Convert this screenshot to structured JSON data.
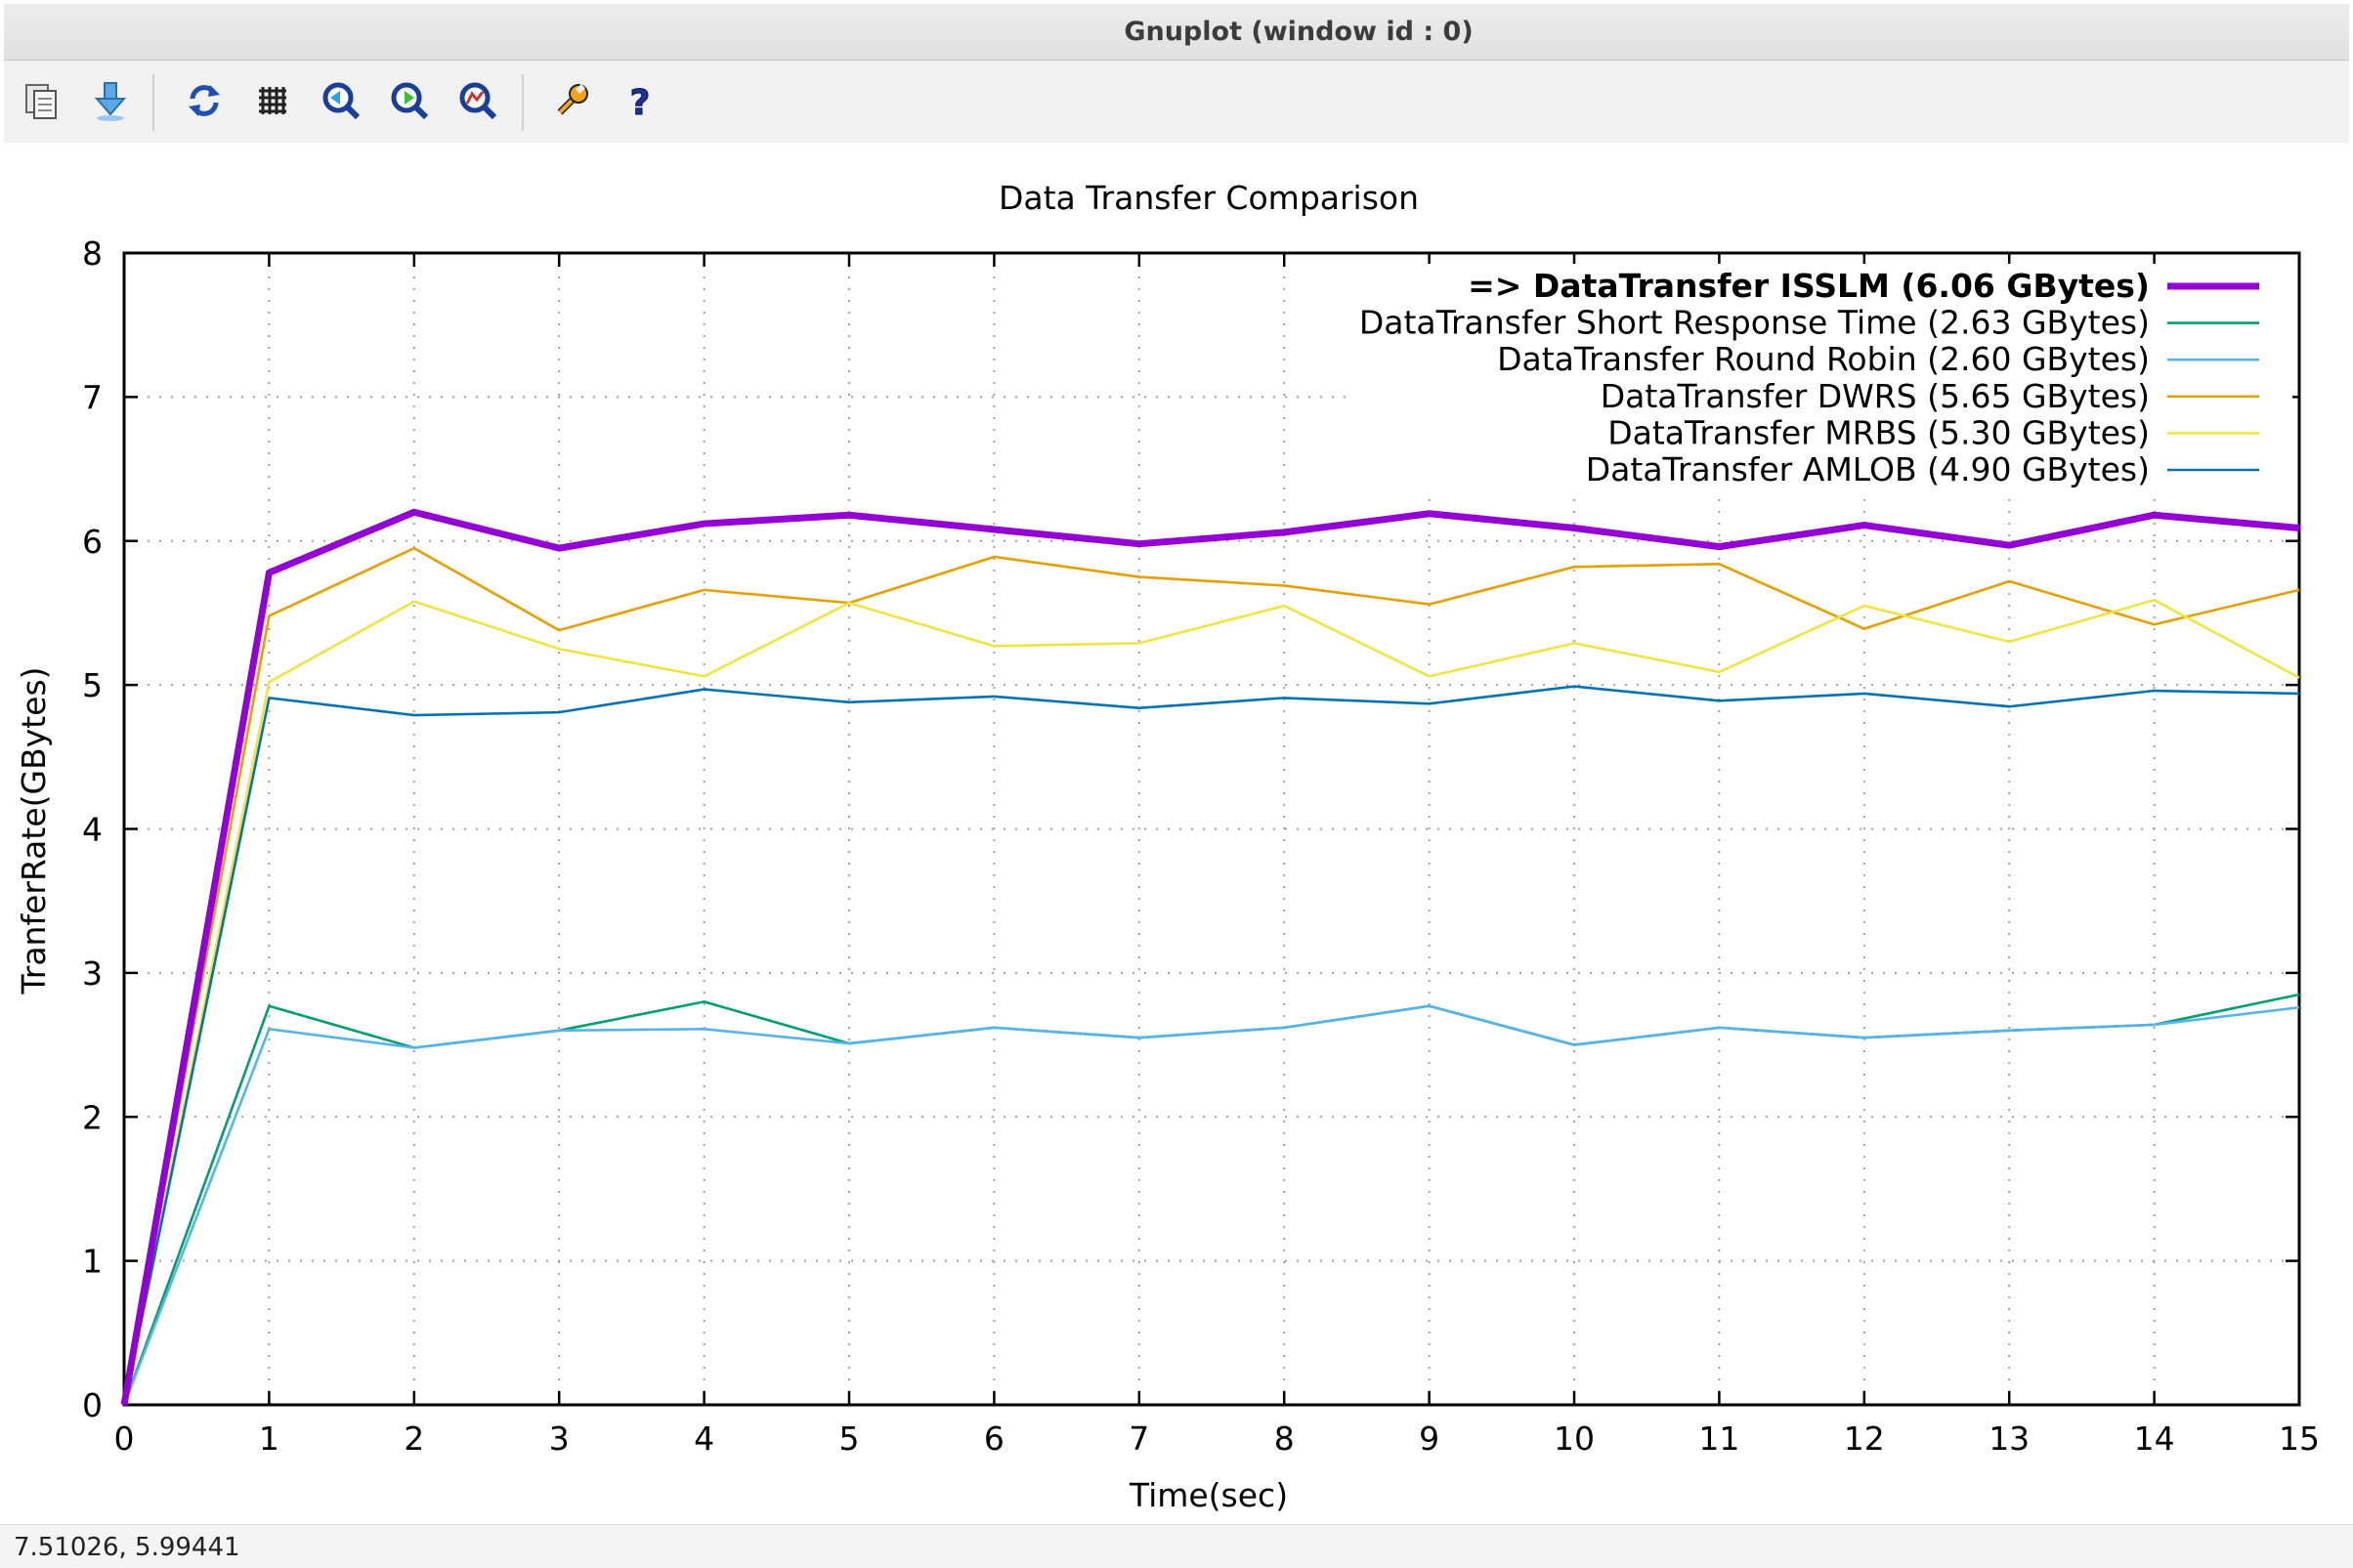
{
  "window": {
    "title": "Gnuplot (window id : 0)"
  },
  "toolbar": {
    "buttons": [
      {
        "icon": "copy-clipboard-icon"
      },
      {
        "icon": "export-icon"
      },
      {
        "icon": "replot-icon"
      },
      {
        "icon": "grid-icon"
      },
      {
        "icon": "zoom-previous-icon"
      },
      {
        "icon": "zoom-next-icon"
      },
      {
        "icon": "autoscale-icon"
      },
      {
        "icon": "settings-wrench-icon"
      },
      {
        "icon": "help-icon"
      }
    ]
  },
  "status": {
    "coords": "7.51026,  5.99441"
  },
  "chart_data": {
    "type": "line",
    "title": "Data Transfer Comparison",
    "xlabel": "Time(sec)",
    "ylabel": "TranferRate(GBytes)",
    "xlim": [
      0,
      15
    ],
    "ylim": [
      0,
      8
    ],
    "x_ticks": [
      "0",
      "1",
      "2",
      "3",
      "4",
      "5",
      "6",
      "7",
      "8",
      "9",
      "10",
      "11",
      "12",
      "13",
      "14",
      "15"
    ],
    "y_ticks": [
      "0",
      "1",
      "2",
      "3",
      "4",
      "5",
      "6",
      "7",
      "8"
    ],
    "grid": true,
    "legend_position": "top-right",
    "x": [
      0,
      1,
      2,
      3,
      4,
      5,
      6,
      7,
      8,
      9,
      10,
      11,
      12,
      13,
      14,
      15
    ],
    "series": [
      {
        "name": "=> DataTransfer ISSLM (6.06 GBytes)",
        "color": "#9400d3",
        "bold": true,
        "values": [
          0,
          5.78,
          6.2,
          5.95,
          6.12,
          6.18,
          6.08,
          5.98,
          6.06,
          6.19,
          6.09,
          5.96,
          6.11,
          5.97,
          6.18,
          6.09
        ]
      },
      {
        "name": "DataTransfer Short Response Time (2.63 GBytes)",
        "color": "#009e73",
        "values": [
          0,
          2.77,
          2.48,
          2.6,
          2.8,
          2.51,
          2.62,
          2.55,
          2.62,
          2.77,
          2.5,
          2.62,
          2.55,
          2.6,
          2.64,
          2.85
        ]
      },
      {
        "name": "DataTransfer Round Robin (2.60 GBytes)",
        "color": "#56b4e9",
        "values": [
          0,
          2.61,
          2.48,
          2.6,
          2.61,
          2.51,
          2.62,
          2.55,
          2.62,
          2.77,
          2.5,
          2.62,
          2.55,
          2.6,
          2.64,
          2.76
        ]
      },
      {
        "name": "DataTransfer DWRS (5.65 GBytes)",
        "color": "#e69f00",
        "values": [
          0,
          5.48,
          5.95,
          5.38,
          5.66,
          5.57,
          5.89,
          5.75,
          5.69,
          5.56,
          5.82,
          5.84,
          5.39,
          5.72,
          5.42,
          5.66
        ]
      },
      {
        "name": "DataTransfer MRBS (5.30 GBytes)",
        "color": "#f0e442",
        "values": [
          0,
          5.02,
          5.58,
          5.25,
          5.06,
          5.57,
          5.27,
          5.29,
          5.55,
          5.06,
          5.29,
          5.09,
          5.55,
          5.3,
          5.59,
          5.05
        ]
      },
      {
        "name": "DataTransfer AMLOB (4.90 GBytes)",
        "color": "#0072b2",
        "values": [
          0,
          4.91,
          4.79,
          4.81,
          4.97,
          4.88,
          4.92,
          4.84,
          4.91,
          4.87,
          4.99,
          4.89,
          4.94,
          4.85,
          4.96,
          4.94
        ]
      }
    ]
  }
}
